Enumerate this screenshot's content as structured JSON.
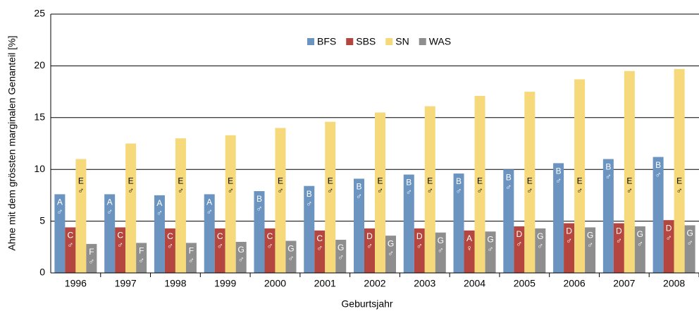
{
  "chart_data": {
    "type": "bar",
    "y_label": "Ahne mit dem grössten marginalen Genanteil [%]",
    "x_label": "Geburtsjahr",
    "categories": [
      "1996",
      "1997",
      "1998",
      "1999",
      "2000",
      "2001",
      "2002",
      "2003",
      "2004",
      "2005",
      "2006",
      "2007",
      "2008"
    ],
    "series": [
      {
        "name": "BFS",
        "color": "#6b94c1",
        "label_color": "#ffffff",
        "values": [
          7.6,
          7.6,
          7.5,
          7.6,
          7.9,
          8.4,
          9.1,
          9.5,
          9.6,
          10.0,
          10.6,
          11.0,
          11.2
        ],
        "letters": [
          "A",
          "A",
          "A",
          "A",
          "B",
          "B",
          "B",
          "B",
          "B",
          "B",
          "B",
          "B",
          "B"
        ],
        "sexes": [
          "♂",
          "♂",
          "♂",
          "♂",
          "♂",
          "♂",
          "♂",
          "♂",
          "♂",
          "♂",
          "♂",
          "♂",
          "♂"
        ]
      },
      {
        "name": "SBS",
        "color": "#b4463f",
        "label_color": "#ffffff",
        "values": [
          4.4,
          4.4,
          4.3,
          4.3,
          4.3,
          4.1,
          4.3,
          4.3,
          4.1,
          4.5,
          4.8,
          4.8,
          5.1
        ],
        "letters": [
          "C",
          "C",
          "C",
          "C",
          "C",
          "C",
          "D",
          "D",
          "A",
          "D",
          "D",
          "D",
          "D"
        ],
        "sexes": [
          "♂",
          "♂",
          "♂",
          "♂",
          "♂",
          "♂",
          "♂",
          "♂",
          "♀",
          "♂",
          "♂",
          "♂",
          "♂"
        ]
      },
      {
        "name": "SN",
        "color": "#f6d97b",
        "label_color": "#000000",
        "values": [
          11.0,
          12.5,
          13.0,
          13.3,
          14.0,
          14.6,
          15.5,
          16.1,
          17.1,
          17.5,
          18.7,
          19.5,
          19.7
        ],
        "letters": [
          "E",
          "E",
          "E",
          "E",
          "E",
          "E",
          "E",
          "E",
          "E",
          "E",
          "E",
          "E",
          "E"
        ],
        "sexes": [
          "♂",
          "♂",
          "♂",
          "♂",
          "♂",
          "♂",
          "♂",
          "♂",
          "♂",
          "♂",
          "♂",
          "♂",
          "♂"
        ]
      },
      {
        "name": "WAS",
        "color": "#8e8e8e",
        "label_color": "#ffffff",
        "values": [
          2.8,
          2.9,
          2.9,
          3.0,
          3.1,
          3.2,
          3.6,
          3.9,
          4.0,
          4.3,
          4.4,
          4.5,
          4.6
        ],
        "letters": [
          "F",
          "F",
          "F",
          "G",
          "G",
          "G",
          "G",
          "G",
          "G",
          "G",
          "G",
          "G",
          "G"
        ],
        "sexes": [
          "♂",
          "♂",
          "♂",
          "♂",
          "♂",
          "♂",
          "♂",
          "♂",
          "♂",
          "♂",
          "♂",
          "♂",
          "♂"
        ]
      }
    ],
    "ylim": [
      0,
      25
    ],
    "yticks": [
      0,
      5,
      10,
      15,
      20,
      25
    ],
    "grid": true,
    "legend": "top"
  }
}
